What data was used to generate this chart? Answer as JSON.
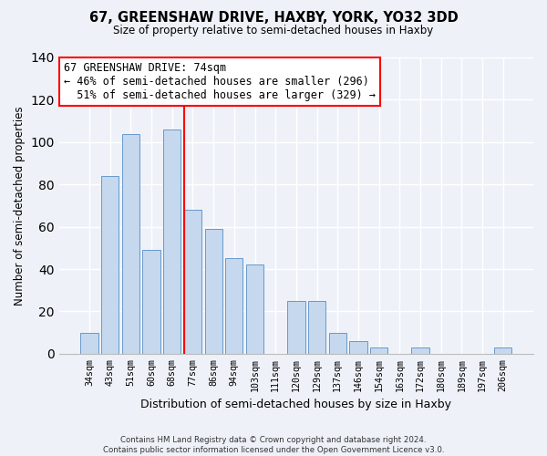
{
  "title": "67, GREENSHAW DRIVE, HAXBY, YORK, YO32 3DD",
  "subtitle": "Size of property relative to semi-detached houses in Haxby",
  "xlabel": "Distribution of semi-detached houses by size in Haxby",
  "ylabel": "Number of semi-detached properties",
  "bar_labels": [
    "34sqm",
    "43sqm",
    "51sqm",
    "60sqm",
    "68sqm",
    "77sqm",
    "86sqm",
    "94sqm",
    "103sqm",
    "111sqm",
    "120sqm",
    "129sqm",
    "137sqm",
    "146sqm",
    "154sqm",
    "163sqm",
    "172sqm",
    "180sqm",
    "189sqm",
    "197sqm",
    "206sqm"
  ],
  "bar_values": [
    10,
    84,
    104,
    49,
    106,
    68,
    59,
    45,
    42,
    0,
    25,
    25,
    10,
    6,
    3,
    0,
    3,
    0,
    0,
    0,
    3
  ],
  "bar_color": "#c5d8ee",
  "bar_edge_color": "#6699cc",
  "property_line_x": 5.0,
  "annotation_title": "67 GREENSHAW DRIVE: 74sqm",
  "annotation_line1": "← 46% of semi-detached houses are smaller (296)",
  "annotation_line2": "  51% of semi-detached houses are larger (329) →",
  "ylim": [
    0,
    140
  ],
  "yticks": [
    0,
    20,
    40,
    60,
    80,
    100,
    120,
    140
  ],
  "footer_line1": "Contains HM Land Registry data © Crown copyright and database right 2024.",
  "footer_line2": "Contains public sector information licensed under the Open Government Licence v3.0.",
  "bg_color": "#eef2f8",
  "plot_bg_color": "#eef2f8",
  "grid_color": "#ffffff",
  "title_fontsize": 10.5,
  "subtitle_fontsize": 8.5
}
